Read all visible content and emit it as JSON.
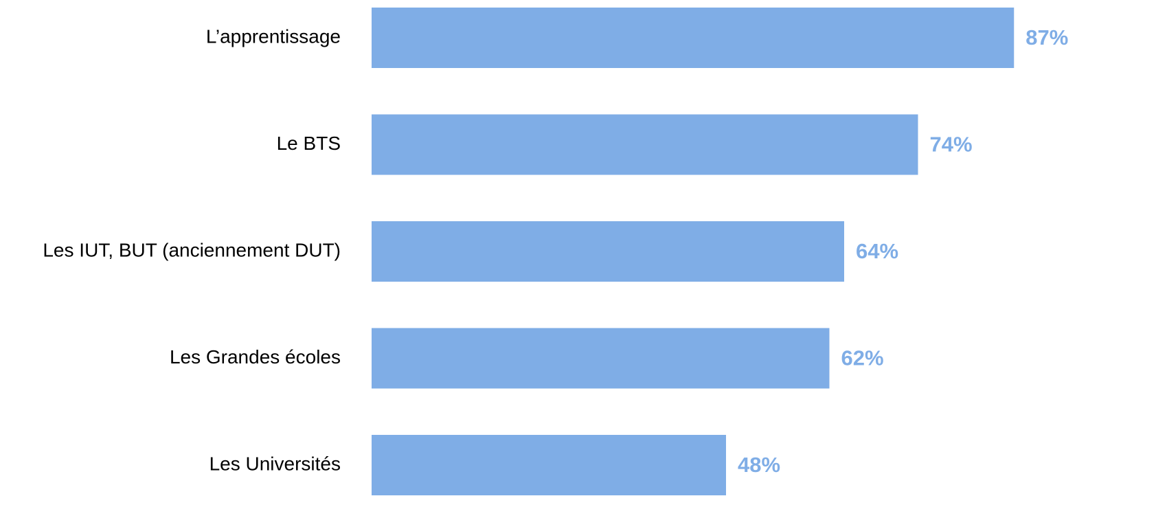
{
  "chart_data": {
    "type": "bar",
    "orientation": "horizontal",
    "categories": [
      "L’apprentissage",
      "Le BTS",
      "Les IUT, BUT (anciennement DUT)",
      "Les Grandes écoles",
      "Les Universités"
    ],
    "values": [
      87,
      74,
      64,
      62,
      48
    ],
    "value_labels": [
      "87%",
      "74%",
      "64%",
      "62%",
      "48%"
    ],
    "color": "#7fade6",
    "xlim": [
      0,
      100
    ]
  }
}
